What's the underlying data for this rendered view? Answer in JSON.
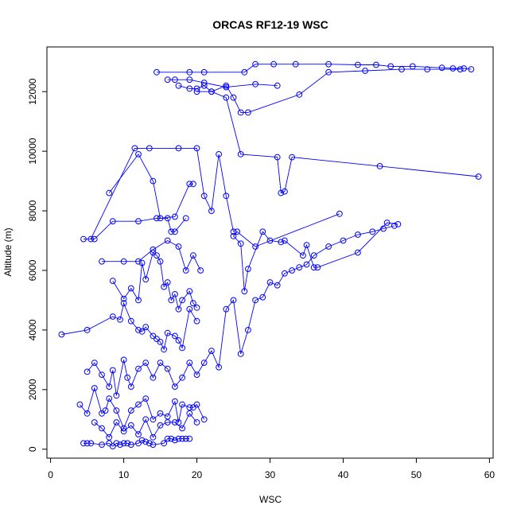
{
  "chart_data": {
    "type": "line",
    "title": "ORCAS RF12-19 WSC",
    "xlabel": "WSC",
    "ylabel": "Altitude (m)",
    "xlim": [
      -0.5,
      60.5
    ],
    "ylim": [
      -300,
      13500
    ],
    "xticks": [
      0,
      10,
      20,
      30,
      40,
      50,
      60
    ],
    "yticks": [
      0,
      2000,
      4000,
      6000,
      8000,
      10000,
      12000
    ],
    "markers": "open-circle",
    "series_color": "#0000ff",
    "series": [
      {
        "x": [
          14.5,
          19,
          21,
          26.5,
          28,
          30.5,
          33.5,
          38,
          42,
          44.5,
          46.5,
          49.5,
          53.5,
          55,
          56.5,
          57.5
        ],
        "y": [
          12650,
          12650,
          12650,
          12650,
          12920,
          12920,
          12920,
          12920,
          12900,
          12900,
          12850,
          12850,
          12800,
          12780,
          12780,
          12750
        ]
      },
      {
        "x": [
          16,
          17,
          19,
          21,
          24,
          28,
          31
        ],
        "y": [
          12400,
          12400,
          12400,
          12300,
          12150,
          12250,
          12200
        ]
      },
      {
        "x": [
          17.5,
          19,
          20,
          21,
          22,
          24,
          25,
          26,
          27,
          34,
          38,
          43,
          48,
          51.5,
          56
        ],
        "y": [
          12200,
          12100,
          12100,
          12200,
          12000,
          12200,
          11800,
          11300,
          11300,
          11900,
          12650,
          12700,
          12750,
          12750,
          12750
        ]
      },
      {
        "x": [
          5.5,
          11.5,
          13.5,
          17.5,
          20,
          21,
          22,
          23,
          24,
          25
        ],
        "y": [
          7050,
          10100,
          10100,
          10100,
          10100,
          8500,
          8000,
          9900,
          8500,
          7300
        ]
      },
      {
        "x": [
          8,
          12,
          14,
          15,
          17,
          19,
          19.5
        ],
        "y": [
          8600,
          9900,
          9000,
          7750,
          7800,
          8900,
          8900
        ]
      },
      {
        "x": [
          4.5,
          6,
          8.5,
          12,
          14.5,
          16,
          16.5,
          17,
          18.5
        ],
        "y": [
          7050,
          7050,
          7650,
          7650,
          7750,
          7750,
          7300,
          7300,
          7750
        ]
      },
      {
        "x": [
          58.5,
          45,
          33,
          32,
          31.5,
          31,
          26,
          24,
          22,
          20
        ],
        "y": [
          9150,
          9500,
          9800,
          8650,
          8600,
          9800,
          9900,
          11800,
          12000,
          12000
        ]
      },
      {
        "x": [
          7,
          10,
          12,
          14,
          16,
          17.5,
          18.5,
          19.5,
          20.5
        ],
        "y": [
          6300,
          6300,
          6300,
          6700,
          7000,
          6800,
          6000,
          6500,
          6000
        ]
      },
      {
        "x": [
          39.5,
          28,
          25.5,
          25,
          26,
          26.5,
          27,
          29,
          30,
          31.5,
          32,
          34.5,
          35,
          36,
          36.5,
          42,
          46,
          47.5
        ],
        "y": [
          7900,
          6800,
          7300,
          7150,
          6900,
          5300,
          6050,
          7300,
          7000,
          6950,
          7000,
          6500,
          6850,
          6100,
          6100,
          6600,
          7600,
          7550
        ]
      },
      {
        "x": [
          8.5,
          10,
          11,
          12,
          12.5,
          13,
          14,
          14.5,
          15,
          15.5,
          16,
          16.5,
          17,
          17.5,
          18,
          19,
          19.5,
          20
        ],
        "y": [
          5650,
          5050,
          5400,
          5000,
          6250,
          5700,
          6600,
          6500,
          6300,
          5450,
          5600,
          5000,
          5200,
          4700,
          5000,
          5300,
          4900,
          4750
        ]
      },
      {
        "x": [
          1.5,
          5,
          8.5,
          9.5,
          10,
          11,
          12,
          12.5,
          13,
          14,
          14.5,
          15,
          15.5,
          16,
          17,
          17.5,
          18,
          19,
          20
        ],
        "y": [
          3850,
          4000,
          4450,
          4350,
          4900,
          4300,
          4000,
          3950,
          4100,
          3800,
          3700,
          3600,
          3350,
          3900,
          3800,
          3650,
          3400,
          4700,
          4300
        ]
      },
      {
        "x": [
          5,
          6,
          7,
          8,
          8.5,
          9,
          10,
          10.5,
          11,
          12,
          13,
          14,
          15,
          16,
          17,
          18,
          19,
          20,
          21,
          22,
          23,
          24,
          25,
          26,
          27,
          28,
          29,
          30,
          31,
          32,
          33,
          34,
          35,
          36,
          38,
          40,
          42,
          44,
          45.5,
          47
        ],
        "y": [
          2600,
          2900,
          2500,
          2100,
          2650,
          1800,
          3000,
          2400,
          2100,
          2700,
          2900,
          2400,
          2900,
          2700,
          2100,
          2400,
          2900,
          2500,
          2900,
          3300,
          2750,
          4700,
          5000,
          3200,
          4000,
          5000,
          5100,
          5600,
          5500,
          5900,
          6000,
          6100,
          6200,
          6500,
          6800,
          7000,
          7200,
          7300,
          7400,
          7500
        ]
      },
      {
        "x": [
          4,
          5,
          6,
          7,
          7.5,
          8,
          9,
          10,
          11,
          12,
          13,
          14,
          15,
          16,
          17,
          17.5,
          18,
          19,
          19.5,
          20,
          21
        ],
        "y": [
          1500,
          1200,
          2050,
          1200,
          1300,
          1700,
          1300,
          700,
          1300,
          1500,
          1700,
          1000,
          1200,
          1100,
          1600,
          900,
          1500,
          1400,
          1400,
          1500,
          1000
        ]
      },
      {
        "x": [
          4.5,
          5,
          5.5,
          7,
          8,
          8.5,
          9,
          9.5,
          10,
          10.5,
          11,
          12,
          12.5,
          13,
          13.5,
          14,
          15.5,
          16,
          16.5,
          17,
          17.5,
          18,
          18.5,
          19
        ],
        "y": [
          200,
          200,
          200,
          150,
          200,
          100,
          200,
          150,
          200,
          200,
          150,
          200,
          300,
          250,
          200,
          150,
          200,
          350,
          350,
          300,
          350,
          350,
          350,
          350
        ]
      },
      {
        "x": [
          6,
          7,
          8,
          9,
          10,
          11,
          12,
          13,
          14,
          15,
          16,
          17,
          18,
          19,
          20
        ],
        "y": [
          900,
          700,
          400,
          900,
          600,
          800,
          500,
          1000,
          400,
          800,
          900,
          900,
          700,
          1200,
          900
        ]
      }
    ]
  }
}
